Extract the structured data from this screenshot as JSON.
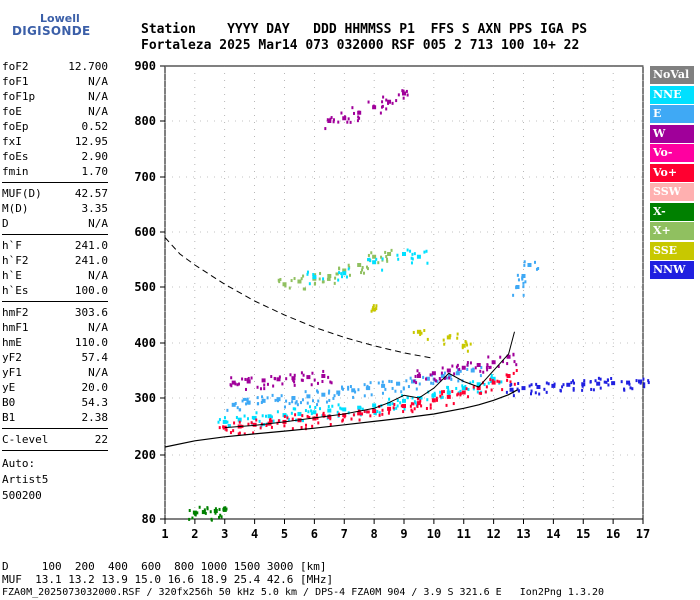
{
  "logo": {
    "top": "Lowell",
    "main": "DIGISONDE"
  },
  "header": {
    "row1": "Station    YYYY DAY   DDD HHMMSS P1  FFS S AXN PPS IGA PS",
    "row2": "Fortaleza 2025 Mar14 073 032000 RSF 005 2 713 100 10+ 22"
  },
  "params": {
    "group1": [
      {
        "label": "foF2",
        "value": "12.700"
      },
      {
        "label": "foF1",
        "value": "N/A"
      },
      {
        "label": "foF1p",
        "value": "N/A"
      },
      {
        "label": "foE",
        "value": "N/A"
      },
      {
        "label": "foEp",
        "value": "0.52"
      },
      {
        "label": "fxI",
        "value": "12.95"
      },
      {
        "label": "foEs",
        "value": "2.90"
      },
      {
        "label": "fmin",
        "value": "1.70"
      }
    ],
    "group2": [
      {
        "label": "MUF(D)",
        "value": "42.57"
      },
      {
        "label": "M(D)",
        "value": "3.35"
      },
      {
        "label": "D",
        "value": "N/A"
      }
    ],
    "group3": [
      {
        "label": "h`F",
        "value": "241.0"
      },
      {
        "label": "h`F2",
        "value": "241.0"
      },
      {
        "label": "h`E",
        "value": "N/A"
      },
      {
        "label": "h`Es",
        "value": "100.0"
      }
    ],
    "group4": [
      {
        "label": "hmF2",
        "value": "303.6"
      },
      {
        "label": "hmF1",
        "value": "N/A"
      },
      {
        "label": "hmE",
        "value": "110.0"
      },
      {
        "label": "yF2",
        "value": "57.4"
      },
      {
        "label": "yF1",
        "value": "N/A"
      },
      {
        "label": "yE",
        "value": "20.0"
      },
      {
        "label": "B0",
        "value": "54.3"
      },
      {
        "label": "B1",
        "value": "2.38"
      }
    ],
    "clevel": {
      "label": "C-level",
      "value": "22"
    },
    "auto": [
      "Auto:",
      "Artist5",
      "500200"
    ]
  },
  "legend": [
    {
      "label": "NoVal",
      "color": "#808080"
    },
    {
      "label": "NNE",
      "color": "#00e0ff"
    },
    {
      "label": "E",
      "color": "#3fa9f5"
    },
    {
      "label": "W",
      "color": "#a0009a"
    },
    {
      "label": "Vo-",
      "color": "#ff00a0"
    },
    {
      "label": "Vo+",
      "color": "#ff0030"
    },
    {
      "label": "SSW",
      "color": "#ffb0b0"
    },
    {
      "label": "X-",
      "color": "#008000"
    },
    {
      "label": "X+",
      "color": "#90c060"
    },
    {
      "label": "SSE",
      "color": "#c8c800"
    },
    {
      "label": "NNW",
      "color": "#2020e0"
    }
  ],
  "footer": {
    "line1": "D     100  200  400  600  800 1000 1500 3000 [km]",
    "line2": "MUF  13.1 13.2 13.9 15.0 16.6 18.9 25.4 42.6 [MHz]",
    "line3": "FZA0M_2025073032000.RSF / 320fx256h 50 kHz 5.0 km / DPS-4 FZA0M 904 / 3.9 S 321.6 E   Ion2Png 1.3.20"
  },
  "chart_data": {
    "type": "scatter",
    "title": "",
    "xlabel": "",
    "ylabel": "",
    "xlim": [
      1,
      17
    ],
    "xticks": [
      1,
      2,
      3,
      4,
      5,
      6,
      7,
      8,
      9,
      10,
      11,
      12,
      13,
      14,
      15,
      16,
      17
    ],
    "ylim": [
      80,
      900
    ],
    "yticks": [
      80,
      200,
      300,
      400,
      500,
      600,
      700,
      800,
      900
    ],
    "y_scale": "nonlinear",
    "grid": true,
    "legend_position": "right",
    "clusters": [
      {
        "series": "X-",
        "x": [
          2.0,
          2.3,
          2.7,
          3.0
        ],
        "y": [
          92,
          93,
          95,
          97
        ]
      },
      {
        "series": "NNE",
        "x": [
          3.0,
          3.5,
          4.0,
          4.5,
          5.0,
          5.5,
          6.0,
          6.5,
          7.0,
          7.5,
          8.0,
          8.5,
          9.0,
          9.5,
          10.0,
          10.5,
          11.0,
          11.5,
          12.0
        ],
        "y": [
          258,
          262,
          265,
          268,
          270,
          272,
          275,
          278,
          280,
          283,
          287,
          290,
          295,
          300,
          305,
          310,
          318,
          325,
          335
        ]
      },
      {
        "series": "Vo+",
        "x": [
          3.0,
          3.5,
          4.0,
          4.5,
          5.0,
          5.5,
          6.0,
          6.5,
          7.0,
          7.5,
          8.0,
          8.5,
          9.0,
          9.5,
          10.0,
          10.5,
          11.0,
          11.5,
          12.0,
          12.5
        ],
        "y": [
          248,
          250,
          253,
          255,
          258,
          261,
          264,
          267,
          270,
          273,
          277,
          281,
          286,
          291,
          296,
          302,
          310,
          318,
          328,
          340
        ]
      },
      {
        "series": "E",
        "x": [
          3.3,
          3.8,
          4.3,
          4.8,
          5.3,
          5.8,
          6.3,
          6.8,
          7.3,
          7.8,
          8.3,
          8.8,
          9.3,
          9.8,
          10.3,
          10.8,
          11.3
        ],
        "y": [
          288,
          292,
          295,
          298,
          300,
          303,
          306,
          310,
          314,
          318,
          322,
          326,
          330,
          335,
          340,
          345,
          350
        ]
      },
      {
        "series": "W",
        "x": [
          3.3,
          3.8,
          4.3,
          4.8,
          5.3,
          5.8,
          6.3,
          9.5,
          10.0,
          10.5,
          11.0,
          11.5,
          12.0,
          12.5
        ],
        "y": [
          328,
          330,
          332,
          334,
          336,
          338,
          340,
          340,
          345,
          350,
          355,
          360,
          365,
          375
        ]
      },
      {
        "series": "NNW",
        "x": [
          12.6,
          13.0,
          13.5,
          14.0,
          14.5,
          15.0,
          15.5,
          16.0,
          16.5,
          16.9
        ],
        "y": [
          315,
          318,
          320,
          322,
          324,
          325,
          326,
          327,
          328,
          330
        ]
      },
      {
        "series": "X+",
        "x": [
          5.0,
          5.5,
          6.0,
          6.5,
          7.0,
          7.5,
          8.0,
          8.5
        ],
        "y": [
          505,
          510,
          515,
          520,
          530,
          540,
          555,
          560
        ]
      },
      {
        "series": "NNE",
        "x": [
          6.0,
          7.0,
          8.0,
          9.0,
          9.5
        ],
        "y": [
          518,
          525,
          545,
          560,
          555
        ]
      },
      {
        "series": "W",
        "x": [
          6.5,
          7.0,
          7.5,
          8.0,
          8.5,
          9.0
        ],
        "y": [
          800,
          805,
          815,
          825,
          835,
          850
        ]
      },
      {
        "series": "E",
        "x": [
          12.8,
          13.0,
          13.2
        ],
        "y": [
          500,
          520,
          540
        ]
      },
      {
        "series": "SSE",
        "x": [
          8.0,
          9.5,
          10.5,
          11.0
        ],
        "y": [
          460,
          420,
          410,
          395
        ]
      }
    ],
    "profile_line": {
      "x": [
        1.0,
        2.0,
        3.0,
        4.0,
        5.0,
        6.0,
        7.0,
        8.0,
        9.0,
        10.0,
        11.0,
        11.5,
        12.0,
        12.5,
        12.8
      ],
      "y": [
        214,
        225,
        232,
        237,
        242,
        247,
        253,
        259,
        265,
        272,
        282,
        288,
        296,
        306,
        315
      ]
    },
    "dashed_line": {
      "x": [
        1.0,
        1.5,
        2.0,
        3.0,
        4.0,
        5.0,
        6.0,
        7.0,
        8.0,
        9.0,
        10.0
      ],
      "y": [
        590,
        560,
        540,
        505,
        475,
        450,
        428,
        410,
        395,
        382,
        372
      ]
    },
    "trace_line": {
      "x": [
        3.0,
        4.0,
        5.0,
        6.0,
        7.0,
        8.0,
        8.5,
        9.0,
        9.5,
        10.0,
        10.5,
        11.0,
        11.5,
        12.0,
        12.5,
        12.7
      ],
      "y": [
        248,
        252,
        258,
        265,
        272,
        282,
        292,
        305,
        300,
        318,
        345,
        330,
        320,
        350,
        380,
        420
      ]
    }
  }
}
